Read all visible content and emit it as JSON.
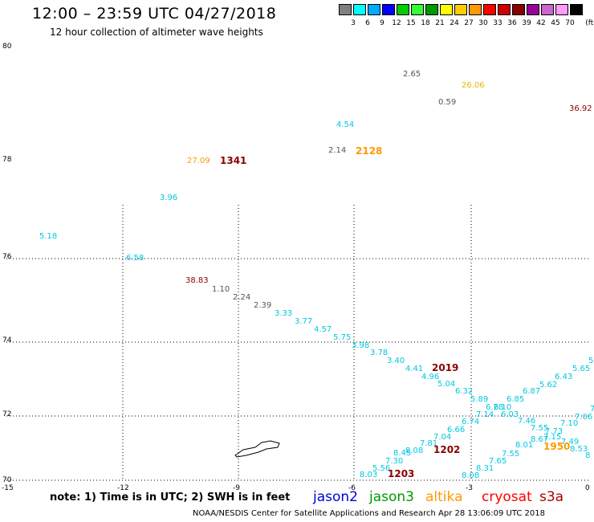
{
  "header": {
    "title": "12:00 – 23:59 UTC 04/27/2018",
    "subtitle": "12 hour collection of altimeter wave heights"
  },
  "legend": {
    "colors": [
      "#808080",
      "#00ffff",
      "#00aaff",
      "#0000ff",
      "#00cc00",
      "#33ff33",
      "#009900",
      "#ffff00",
      "#ffcc00",
      "#ff9900",
      "#ff0000",
      "#cc0000",
      "#880000",
      "#990099",
      "#cc66cc",
      "#ff99ff",
      "#000000"
    ],
    "labels": [
      "3",
      "6",
      "9",
      "12",
      "15",
      "18",
      "21",
      "24",
      "27",
      "30",
      "33",
      "36",
      "39",
      "42",
      "45",
      "70"
    ],
    "unit": "(ft)"
  },
  "axes": {
    "lon_labels": [
      "-15",
      "-12",
      "-9",
      "-6",
      "-3",
      "0"
    ],
    "lat_labels": [
      "80",
      "78",
      "76",
      "74",
      "72",
      "70"
    ]
  },
  "colors": {
    "cyan": "#00c8e0",
    "gray": "#555555",
    "orange": "#ff9900",
    "darkred": "#8b0000",
    "gold": "#e6b800"
  },
  "observations": [
    {
      "t": "2.65",
      "c": "gray",
      "big": false
    },
    {
      "t": "26.06",
      "c": "gold",
      "big": false
    },
    {
      "t": "0.59",
      "c": "gray",
      "big": false
    },
    {
      "t": "36.92",
      "c": "darkred",
      "big": false
    },
    {
      "t": "4.54",
      "c": "cyan",
      "big": false
    },
    {
      "t": "2.14",
      "c": "gray",
      "big": false
    },
    {
      "t": "2128",
      "c": "orange",
      "big": true
    },
    {
      "t": "27.09",
      "c": "orange",
      "big": false
    },
    {
      "t": "1341",
      "c": "darkred",
      "big": true
    },
    {
      "t": "3.96",
      "c": "cyan",
      "big": false
    },
    {
      "t": "5.18",
      "c": "cyan",
      "big": false
    },
    {
      "t": "6.58",
      "c": "cyan",
      "big": false
    },
    {
      "t": "38.83",
      "c": "darkred",
      "big": false
    },
    {
      "t": "1.10",
      "c": "gray",
      "big": false
    },
    {
      "t": "2.24",
      "c": "gray",
      "big": false
    },
    {
      "t": "2.39",
      "c": "gray",
      "big": false
    },
    {
      "t": "3.33",
      "c": "cyan",
      "big": false
    },
    {
      "t": "3.77",
      "c": "cyan",
      "big": false
    },
    {
      "t": "4.57",
      "c": "cyan",
      "big": false
    },
    {
      "t": "5.75",
      "c": "cyan",
      "big": false
    },
    {
      "t": "3.98",
      "c": "cyan",
      "big": false
    },
    {
      "t": "3.78",
      "c": "cyan",
      "big": false
    },
    {
      "t": "3.40",
      "c": "cyan",
      "big": false
    },
    {
      "t": "4.41",
      "c": "cyan",
      "big": false
    },
    {
      "t": "2019",
      "c": "darkred",
      "big": true
    },
    {
      "t": "4.96",
      "c": "cyan",
      "big": false
    },
    {
      "t": "5.04",
      "c": "cyan",
      "big": false
    },
    {
      "t": "6.32",
      "c": "cyan",
      "big": false
    },
    {
      "t": "5.89",
      "c": "cyan",
      "big": false
    },
    {
      "t": "6.28",
      "c": "cyan",
      "big": false
    },
    {
      "t": "6.10",
      "c": "cyan",
      "big": false
    },
    {
      "t": "6.85",
      "c": "cyan",
      "big": false
    },
    {
      "t": "6.87",
      "c": "cyan",
      "big": false
    },
    {
      "t": "5.62",
      "c": "cyan",
      "big": false
    },
    {
      "t": "6.43",
      "c": "cyan",
      "big": false
    },
    {
      "t": "5.65",
      "c": "cyan",
      "big": false
    },
    {
      "t": "5",
      "c": "cyan",
      "big": false
    },
    {
      "t": "7.14",
      "c": "cyan",
      "big": false
    },
    {
      "t": "6.03",
      "c": "cyan",
      "big": false
    },
    {
      "t": "6.74",
      "c": "cyan",
      "big": false
    },
    {
      "t": "7.46",
      "c": "cyan",
      "big": false
    },
    {
      "t": "7.06",
      "c": "cyan",
      "big": false
    },
    {
      "t": "6.66",
      "c": "cyan",
      "big": false
    },
    {
      "t": "7.55",
      "c": "cyan",
      "big": false
    },
    {
      "t": "7.73",
      "c": "cyan",
      "big": false
    },
    {
      "t": "7.10",
      "c": "cyan",
      "big": false
    },
    {
      "t": "7.04",
      "c": "cyan",
      "big": false
    },
    {
      "t": "7.15",
      "c": "cyan",
      "big": false
    },
    {
      "t": "8.67",
      "c": "cyan",
      "big": false
    },
    {
      "t": "7.49",
      "c": "cyan",
      "big": false
    },
    {
      "t": "7.81",
      "c": "cyan",
      "big": false
    },
    {
      "t": "1950",
      "c": "orange",
      "big": true
    },
    {
      "t": "8.53",
      "c": "cyan",
      "big": false
    },
    {
      "t": "8.08",
      "c": "cyan",
      "big": false
    },
    {
      "t": "1202",
      "c": "darkred",
      "big": true
    },
    {
      "t": "8.01",
      "c": "cyan",
      "big": false
    },
    {
      "t": "8.45",
      "c": "cyan",
      "big": false
    },
    {
      "t": "7.55",
      "c": "cyan",
      "big": false
    },
    {
      "t": "7.30",
      "c": "cyan",
      "big": false
    },
    {
      "t": "7.65",
      "c": "cyan",
      "big": false
    },
    {
      "t": "5.56",
      "c": "cyan",
      "big": false
    },
    {
      "t": "8.31",
      "c": "cyan",
      "big": false
    },
    {
      "t": "8.03",
      "c": "cyan",
      "big": false
    },
    {
      "t": "1203",
      "c": "darkred",
      "big": true
    },
    {
      "t": "8.08",
      "c": "cyan",
      "big": false
    },
    {
      "t": "8",
      "c": "cyan",
      "big": false
    },
    {
      "t": "7",
      "c": "cyan",
      "big": false
    }
  ],
  "footer": {
    "note": "note:  1) Time is in UTC;  2) SWH is in feet",
    "satellites": [
      {
        "name": "jason2",
        "color": "#0000dd"
      },
      {
        "name": "jason3",
        "color": "#009900"
      },
      {
        "name": "altika",
        "color": "#ff9900"
      },
      {
        "name": "cryosat",
        "color": "#ff0000"
      },
      {
        "name": "s3a",
        "color": "#aa0000"
      }
    ],
    "credit": "NOAA/NESDIS Center for Satellite Applications and Research    Apr 28 13:06:09 UTC 2018"
  }
}
